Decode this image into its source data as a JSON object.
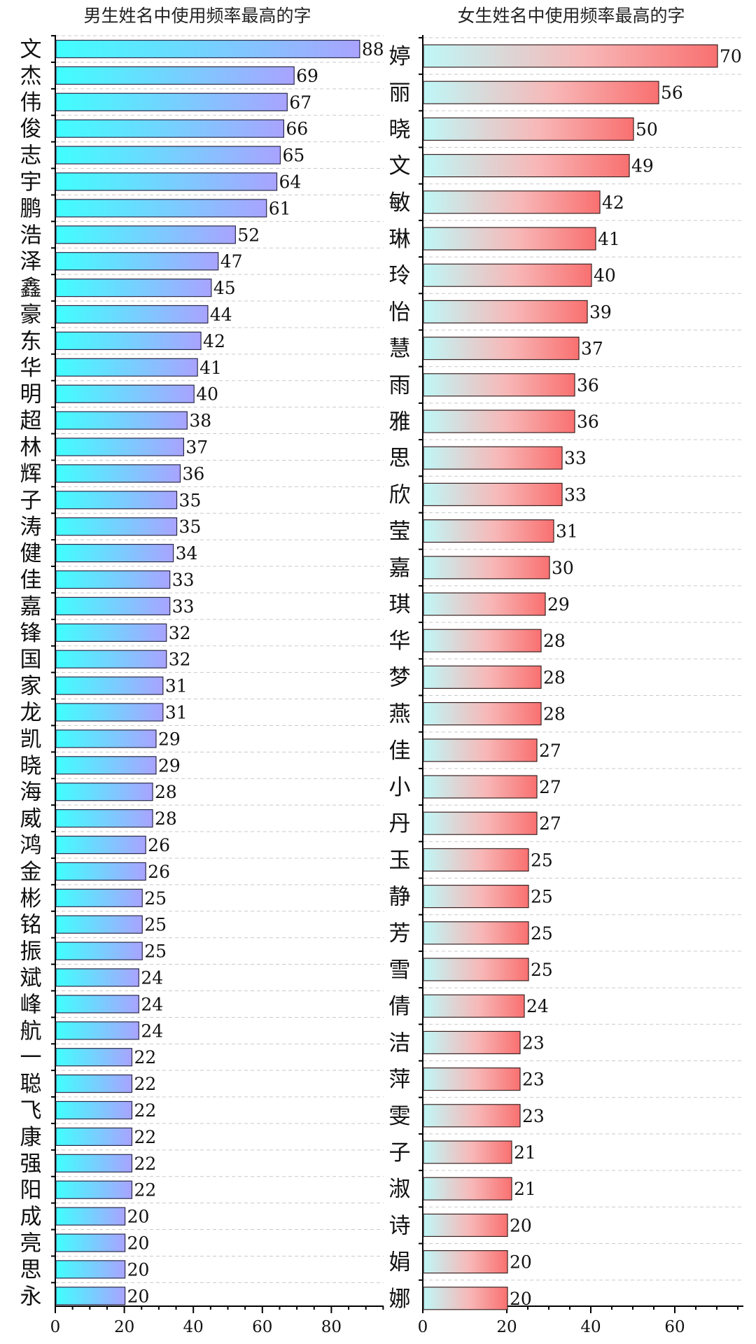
{
  "chart_data": [
    {
      "type": "bar",
      "orientation": "horizontal",
      "title": "男生姓名中使用频率最高的字",
      "xlabel": "",
      "ylabel": "",
      "xlim": [
        0,
        95
      ],
      "x_ticks": [
        0,
        20,
        40,
        60,
        80
      ],
      "gradient": [
        "#40ffff",
        "#a9a3ff"
      ],
      "categories": [
        "文",
        "杰",
        "伟",
        "俊",
        "志",
        "宇",
        "鹏",
        "浩",
        "泽",
        "鑫",
        "豪",
        "东",
        "华",
        "明",
        "超",
        "林",
        "辉",
        "子",
        "涛",
        "健",
        "佳",
        "嘉",
        "锋",
        "国",
        "家",
        "龙",
        "凯",
        "晓",
        "海",
        "威",
        "鸿",
        "金",
        "彬",
        "铭",
        "振",
        "斌",
        "峰",
        "航",
        "一",
        "聪",
        "飞",
        "康",
        "强",
        "阳",
        "成",
        "亮",
        "思",
        "永"
      ],
      "values": [
        88,
        69,
        67,
        66,
        65,
        64,
        61,
        52,
        47,
        45,
        44,
        42,
        41,
        40,
        38,
        37,
        36,
        35,
        35,
        34,
        33,
        33,
        32,
        32,
        31,
        31,
        29,
        29,
        28,
        28,
        26,
        26,
        25,
        25,
        25,
        24,
        24,
        24,
        22,
        22,
        22,
        22,
        22,
        22,
        20,
        20,
        20,
        20
      ]
    },
    {
      "type": "bar",
      "orientation": "horizontal",
      "title": "女生姓名中使用频率最高的字",
      "xlabel": "",
      "ylabel": "",
      "xlim": [
        0,
        75
      ],
      "x_ticks": [
        0,
        20,
        40,
        60
      ],
      "gradient": [
        "#bff7f7",
        "#f97070"
      ],
      "categories": [
        "婷",
        "丽",
        "晓",
        "文",
        "敏",
        "琳",
        "玲",
        "怡",
        "慧",
        "雨",
        "雅",
        "思",
        "欣",
        "莹",
        "嘉",
        "琪",
        "华",
        "梦",
        "燕",
        "佳",
        "小",
        "丹",
        "玉",
        "静",
        "芳",
        "雪",
        "倩",
        "洁",
        "萍",
        "雯",
        "子",
        "淑",
        "诗",
        "娟",
        "娜"
      ],
      "values": [
        70,
        56,
        50,
        49,
        42,
        41,
        40,
        39,
        37,
        36,
        36,
        33,
        33,
        31,
        30,
        29,
        28,
        28,
        28,
        27,
        27,
        27,
        25,
        25,
        25,
        25,
        24,
        23,
        23,
        23,
        21,
        21,
        20,
        20,
        20
      ]
    }
  ]
}
